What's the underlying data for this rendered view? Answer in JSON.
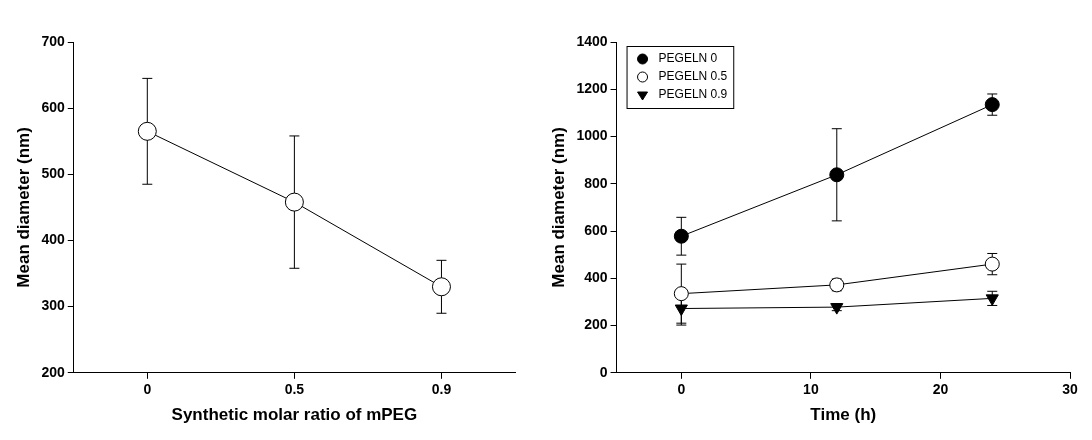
{
  "chart_data": [
    {
      "type": "line",
      "x_label": "Synthetic molar ratio of mPEG",
      "y_label": "Mean diameter (nm)",
      "categories": [
        "0",
        "0.5",
        "0.9"
      ],
      "values": [
        565,
        458,
        330
      ],
      "errors": [
        80,
        100,
        40
      ],
      "color": "#000000",
      "marker": "circle_open",
      "ylim": [
        200,
        700
      ],
      "yticks": [
        200,
        300,
        400,
        500,
        600,
        700
      ],
      "grid": false
    },
    {
      "type": "line",
      "x_label": "Time (h)",
      "y_label": "Mean diameter (nm)",
      "x": [
        0,
        12,
        24
      ],
      "series": [
        {
          "name": "PEGELN 0",
          "color": "#000000",
          "marker": "circle",
          "values": [
            578,
            838,
            1135
          ],
          "errors": [
            80,
            195,
            45
          ]
        },
        {
          "name": "PEGELN 0.5",
          "color": "#000000",
          "marker": "circle_open",
          "values": [
            335,
            372,
            460
          ],
          "errors": [
            125,
            25,
            45
          ]
        },
        {
          "name": "PEGELN 0.9",
          "color": "#000000",
          "marker": "triangle_down",
          "values": [
            272,
            278,
            315
          ],
          "errors": [
            70,
            15,
            30
          ]
        }
      ],
      "xlim": [
        -5,
        30
      ],
      "xticks": [
        0,
        10,
        20,
        30
      ],
      "ylim": [
        0,
        1400
      ],
      "yticks": [
        0,
        200,
        400,
        600,
        800,
        1000,
        1200,
        1400
      ],
      "legend": "upper left",
      "grid": false
    }
  ]
}
